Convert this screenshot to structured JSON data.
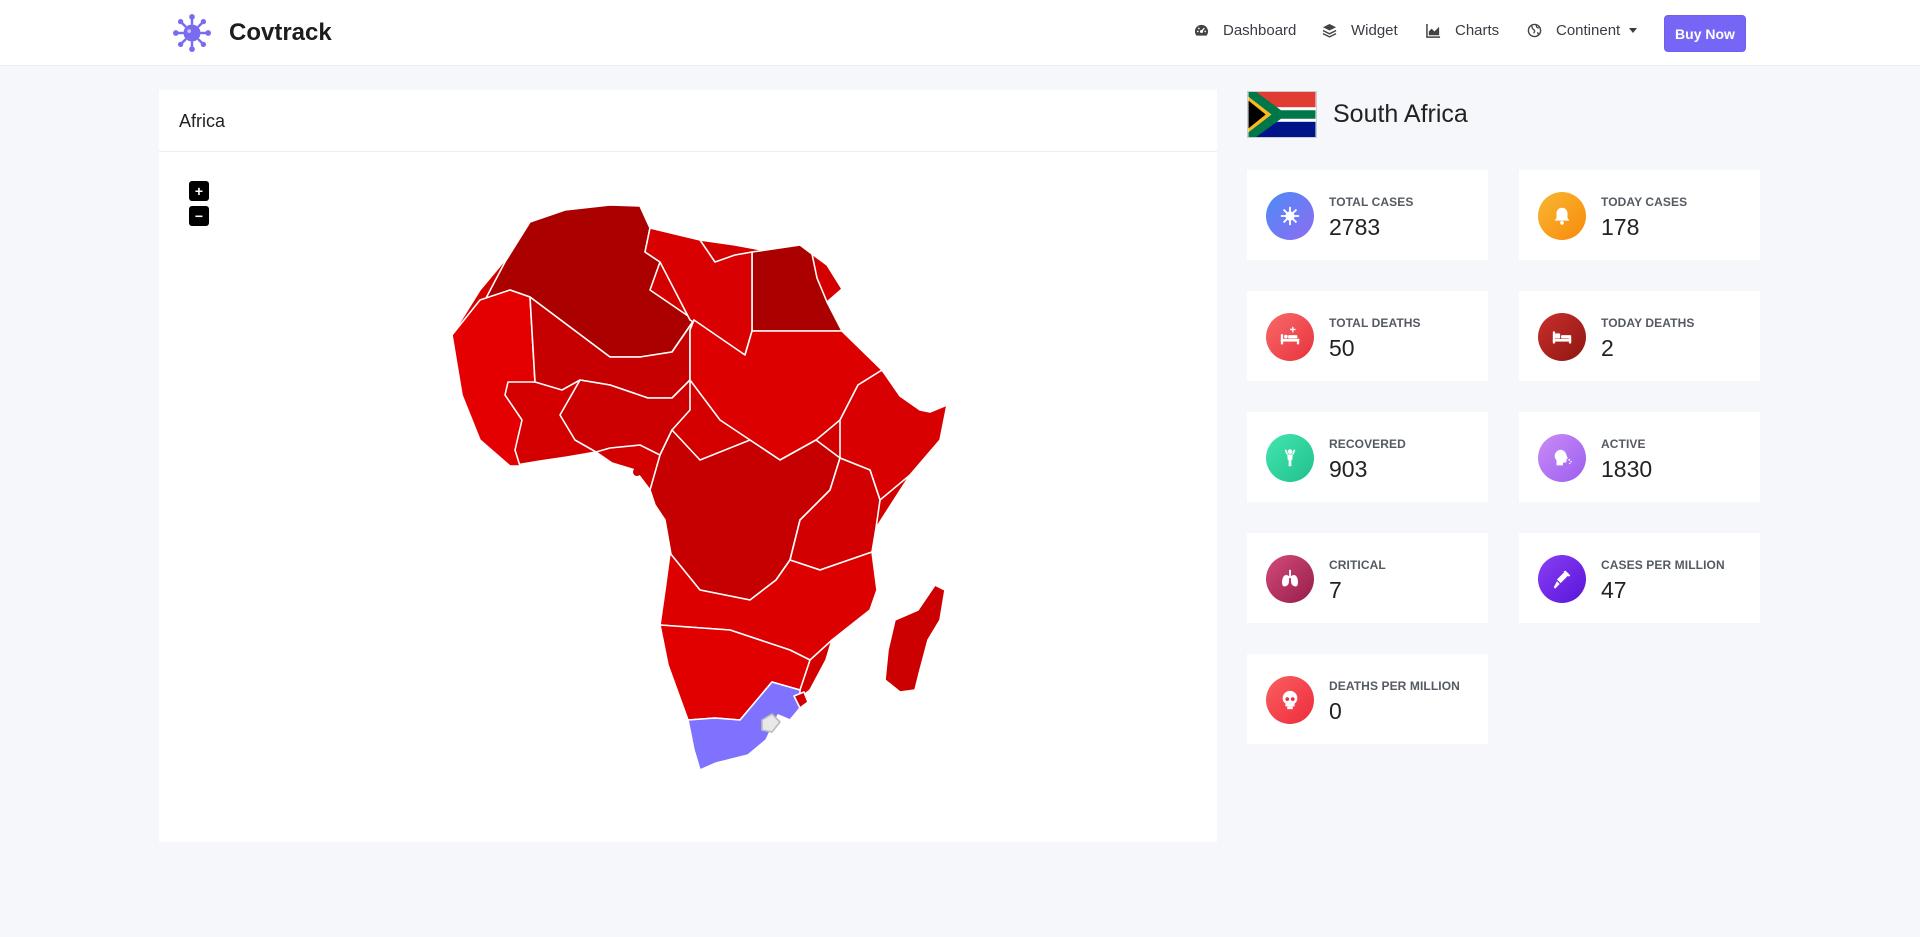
{
  "navbar": {
    "brand": "Covtrack",
    "items": [
      {
        "label": "Dashboard",
        "icon": "gauge-icon"
      },
      {
        "label": "Widget",
        "icon": "layers-icon"
      },
      {
        "label": "Charts",
        "icon": "area-chart-icon"
      },
      {
        "label": "Continent",
        "icon": "globe-icon"
      }
    ],
    "buy_label": "Buy Now"
  },
  "map": {
    "title": "Africa",
    "zoom_in": "+",
    "zoom_out": "−",
    "selected_country": "South Africa",
    "colors": {
      "selected": "#7f72ff",
      "high": "#ab0000",
      "mid": "#c80000",
      "low": "#e10000",
      "border": "#ffffff"
    }
  },
  "country": {
    "name": "South Africa",
    "stats": [
      {
        "label": "TOTAL CASES",
        "value": "2783",
        "icon": "virus-icon",
        "color": "#6a78f0"
      },
      {
        "label": "TODAY CASES",
        "value": "178",
        "icon": "bell-icon",
        "color": "#f9a21a"
      },
      {
        "label": "TOTAL DEATHS",
        "value": "50",
        "icon": "hospital-bed-icon",
        "color": "#f1504f"
      },
      {
        "label": "TODAY DEATHS",
        "value": "2",
        "icon": "bed-icon",
        "color": "#b0201d"
      },
      {
        "label": "RECOVERED",
        "value": "903",
        "icon": "person-icon",
        "color": "#2fcf9c"
      },
      {
        "label": "ACTIVE",
        "value": "1830",
        "icon": "head-cough-icon",
        "color": "#b27ff0"
      },
      {
        "label": "CRITICAL",
        "value": "7",
        "icon": "lungs-icon",
        "color": "#b02a5c"
      },
      {
        "label": "CASES PER MILLION",
        "value": "47",
        "icon": "syringe-icon",
        "color": "#7129f0"
      },
      {
        "label": "DEATHS PER MILLION",
        "value": "0",
        "icon": "skull-icon",
        "color": "#f1454f"
      }
    ]
  }
}
